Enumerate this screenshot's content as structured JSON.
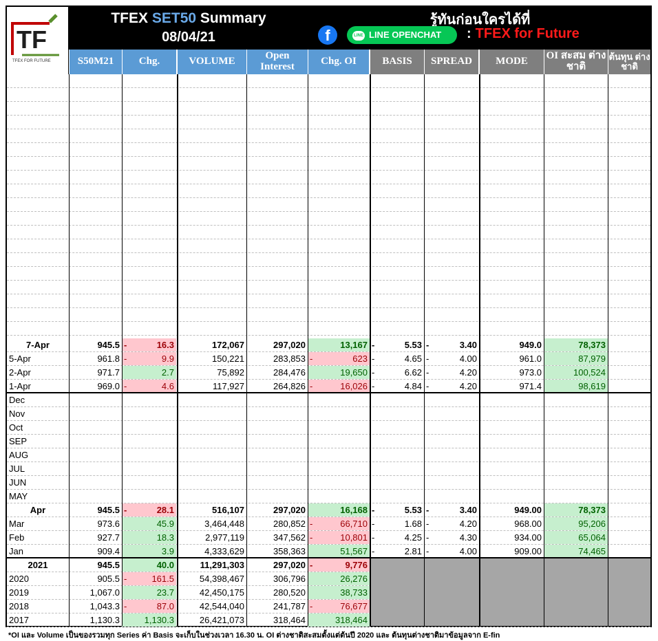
{
  "header": {
    "title_prefix": "TFEX ",
    "title_accent": "SET50",
    "title_suffix": " Summary",
    "date": "08/04/21",
    "tagline": "รู้ทันก่อนใครได้ที่",
    "facebook_glyph": "f",
    "line_badge": "LINE",
    "line_label": "LINE OPENCHAT",
    "openchat_colon": ":",
    "openchat_name": "TFEX for Future",
    "logo_letters": "TF",
    "logo_caption": "TFEX FOR FUTURE",
    "colors": {
      "accent_blue": "#5b9bd5",
      "header_gray": "#7f7f7f",
      "brand_red": "#ff1a1a",
      "line_green": "#06c755",
      "fb_blue": "#1877f2"
    }
  },
  "columns": [
    "S50M21",
    "Chg.",
    "VOLUME",
    "Open Interest",
    "Chg. OI",
    "BASIS",
    "SPREAD",
    "MODE",
    "OI สะสม ต่างชาติ",
    "ต้นทุน ต่างชาติ"
  ],
  "daily_rows": [
    {
      "label": "7-Apr",
      "price": "945.5",
      "chg_sign": "-",
      "chg": "16.3",
      "chg_style": "neg",
      "volume": "172,067",
      "oi": "297,020",
      "chg_oi_sign": "",
      "chg_oi": "13,167",
      "chg_oi_style": "pos",
      "basis_sign": "-",
      "basis": "5.53",
      "spread_sign": "-",
      "spread": "3.40",
      "mode": "949.0",
      "foreign_oi": "78,373",
      "cost": "",
      "bold": true
    },
    {
      "label": "5-Apr",
      "price": "961.8",
      "chg_sign": "-",
      "chg": "9.9",
      "chg_style": "neg",
      "volume": "150,221",
      "oi": "283,853",
      "chg_oi_sign": "-",
      "chg_oi": "623",
      "chg_oi_style": "neg",
      "basis_sign": "-",
      "basis": "4.65",
      "spread_sign": "-",
      "spread": "4.00",
      "mode": "961.0",
      "foreign_oi": "87,979",
      "cost": "",
      "bold": false
    },
    {
      "label": "2-Apr",
      "price": "971.7",
      "chg_sign": "",
      "chg": "2.7",
      "chg_style": "pos",
      "volume": "75,892",
      "oi": "284,476",
      "chg_oi_sign": "",
      "chg_oi": "19,650",
      "chg_oi_style": "pos",
      "basis_sign": "-",
      "basis": "6.62",
      "spread_sign": "-",
      "spread": "4.20",
      "mode": "973.0",
      "foreign_oi": "100,524",
      "cost": "",
      "bold": false
    },
    {
      "label": "1-Apr",
      "price": "969.0",
      "chg_sign": "-",
      "chg": "4.6",
      "chg_style": "neg",
      "volume": "117,927",
      "oi": "264,826",
      "chg_oi_sign": "-",
      "chg_oi": "16,026",
      "chg_oi_style": "neg",
      "basis_sign": "-",
      "basis": "4.84",
      "spread_sign": "-",
      "spread": "4.20",
      "mode": "971.4",
      "foreign_oi": "98,619",
      "cost": "",
      "bold": false
    }
  ],
  "month_labels_empty": [
    "Dec",
    "Nov",
    "Oct",
    "SEP",
    "AUG",
    "JUL",
    "JUN",
    "MAY"
  ],
  "monthly_rows": [
    {
      "label": "Apr",
      "price": "945.5",
      "chg_sign": "-",
      "chg": "28.1",
      "chg_style": "neg",
      "volume": "516,107",
      "oi": "297,020",
      "chg_oi_sign": "",
      "chg_oi": "16,168",
      "chg_oi_style": "pos",
      "basis_sign": "-",
      "basis": "5.53",
      "spread_sign": "-",
      "spread": "3.40",
      "mode": "949.00",
      "foreign_oi": "78,373",
      "cost": "",
      "bold": true
    },
    {
      "label": "Mar",
      "price": "973.6",
      "chg_sign": "",
      "chg": "45.9",
      "chg_style": "pos",
      "volume": "3,464,448",
      "oi": "280,852",
      "chg_oi_sign": "-",
      "chg_oi": "66,710",
      "chg_oi_style": "neg",
      "basis_sign": "-",
      "basis": "1.68",
      "spread_sign": "-",
      "spread": "4.20",
      "mode": "968.00",
      "foreign_oi": "95,206",
      "cost": "",
      "bold": false
    },
    {
      "label": "Feb",
      "price": "927.7",
      "chg_sign": "",
      "chg": "18.3",
      "chg_style": "pos",
      "volume": "2,977,119",
      "oi": "347,562",
      "chg_oi_sign": "-",
      "chg_oi": "10,801",
      "chg_oi_style": "neg",
      "basis_sign": "-",
      "basis": "4.25",
      "spread_sign": "-",
      "spread": "4.30",
      "mode": "934.00",
      "foreign_oi": "65,064",
      "cost": "",
      "bold": false
    },
    {
      "label": "Jan",
      "price": "909.4",
      "chg_sign": "",
      "chg": "3.9",
      "chg_style": "pos",
      "volume": "4,333,629",
      "oi": "358,363",
      "chg_oi_sign": "",
      "chg_oi": "51,567",
      "chg_oi_style": "pos",
      "basis_sign": "-",
      "basis": "2.81",
      "spread_sign": "-",
      "spread": "4.00",
      "mode": "909.00",
      "foreign_oi": "74,465",
      "cost": "",
      "bold": false
    }
  ],
  "yearly_rows": [
    {
      "label": "2021",
      "price": "945.5",
      "chg_sign": "",
      "chg": "40.0",
      "chg_style": "pos",
      "volume": "11,291,303",
      "oi": "297,020",
      "chg_oi_sign": "-",
      "chg_oi": "9,776",
      "chg_oi_style": "neg",
      "bold": true
    },
    {
      "label": "2020",
      "price": "905.5",
      "chg_sign": "-",
      "chg": "161.5",
      "chg_style": "neg",
      "volume": "54,398,467",
      "oi": "306,796",
      "chg_oi_sign": "",
      "chg_oi": "26,276",
      "chg_oi_style": "pos",
      "bold": false
    },
    {
      "label": "2019",
      "price": "1,067.0",
      "chg_sign": "",
      "chg": "23.7",
      "chg_style": "pos",
      "volume": "42,450,175",
      "oi": "280,520",
      "chg_oi_sign": "",
      "chg_oi": "38,733",
      "chg_oi_style": "pos",
      "bold": false
    },
    {
      "label": "2018",
      "price": "1,043.3",
      "chg_sign": "-",
      "chg": "87.0",
      "chg_style": "neg",
      "volume": "42,544,040",
      "oi": "241,787",
      "chg_oi_sign": "-",
      "chg_oi": "76,677",
      "chg_oi_style": "neg",
      "bold": false
    },
    {
      "label": "2017",
      "price": "1,130.3",
      "chg_sign": "",
      "chg": "1,130.3",
      "chg_style": "pos",
      "volume": "26,421,073",
      "oi": "318,464",
      "chg_oi_sign": "",
      "chg_oi": "318,464",
      "chg_oi_style": "pos",
      "bold": false
    }
  ],
  "footnote": "*OI และ Volume เป็นของรวมทุก Series ค่า Basis จะเก็บในช่วงเวลา 16.30 น. OI ต่างชาติสะสมตั้งแต่ต้นปี 2020 และ ต้นทุนต่างชาติมาข้อมูลจาก E-fin"
}
